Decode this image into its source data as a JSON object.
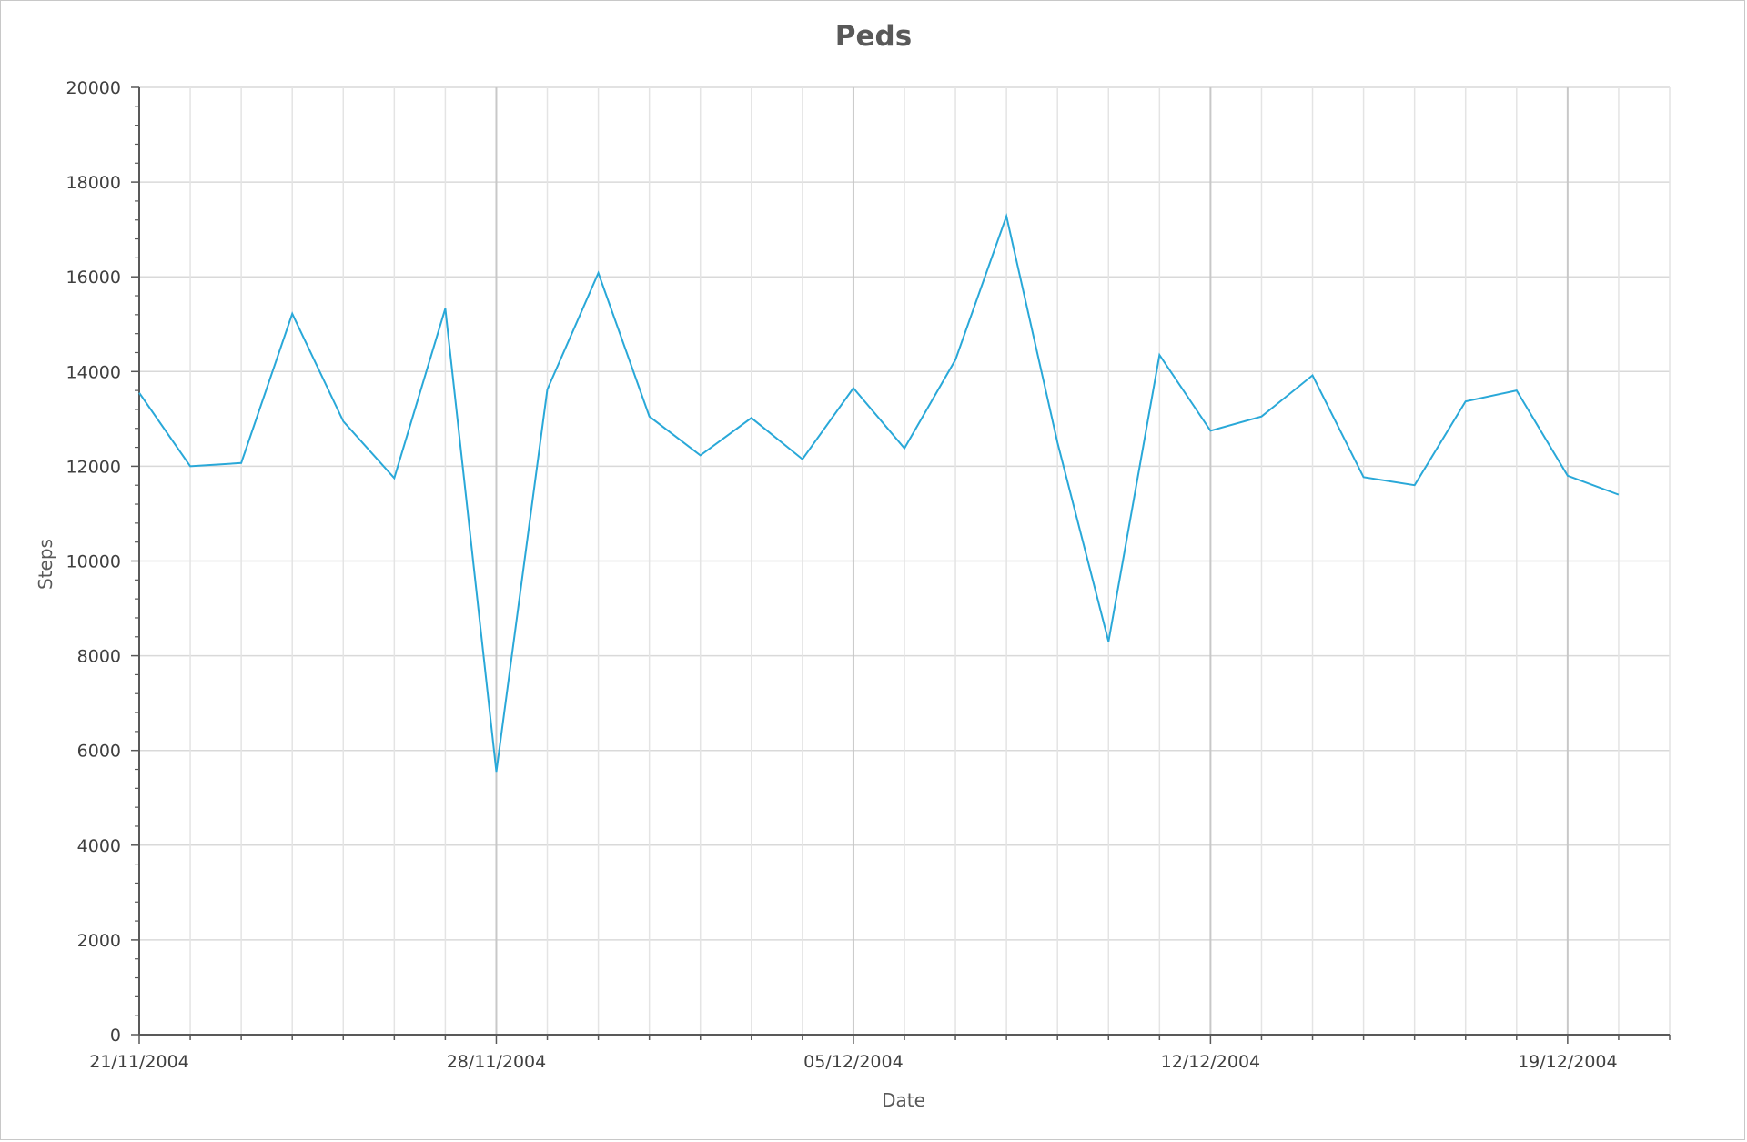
{
  "chart_data": {
    "type": "line",
    "title": "Peds",
    "xlabel": "Date",
    "ylabel": "Steps",
    "ylim": [
      0,
      20000
    ],
    "ytick_step": 2000,
    "x_range": [
      "2004-11-21",
      "2004-12-21"
    ],
    "x_tick_labels": [
      "21/11/2004",
      "28/11/2004",
      "05/12/2004",
      "12/12/2004",
      "19/12/2004"
    ],
    "grid": true,
    "line_color": "#29a8d8",
    "series": [
      {
        "x": [
          "2004-11-21",
          "2004-11-22",
          "2004-11-23",
          "2004-11-24",
          "2004-11-25",
          "2004-11-26",
          "2004-11-27",
          "2004-11-28",
          "2004-11-29",
          "2004-11-30",
          "2004-12-01",
          "2004-12-02",
          "2004-12-03",
          "2004-12-04",
          "2004-12-05",
          "2004-12-06",
          "2004-12-07",
          "2004-12-08",
          "2004-12-09",
          "2004-12-10",
          "2004-12-11",
          "2004-12-12",
          "2004-12-13",
          "2004-12-14",
          "2004-12-15",
          "2004-12-16",
          "2004-12-17",
          "2004-12-18",
          "2004-12-19",
          "2004-12-20"
        ],
        "values": [
          13550,
          12000,
          12070,
          15220,
          12950,
          11750,
          15330,
          5550,
          13620,
          16080,
          13050,
          12230,
          13020,
          12150,
          13650,
          12380,
          14250,
          17280,
          12500,
          8300,
          14350,
          12750,
          13050,
          13920,
          11770,
          11600,
          13370,
          13600,
          11800,
          11400
        ]
      }
    ]
  }
}
